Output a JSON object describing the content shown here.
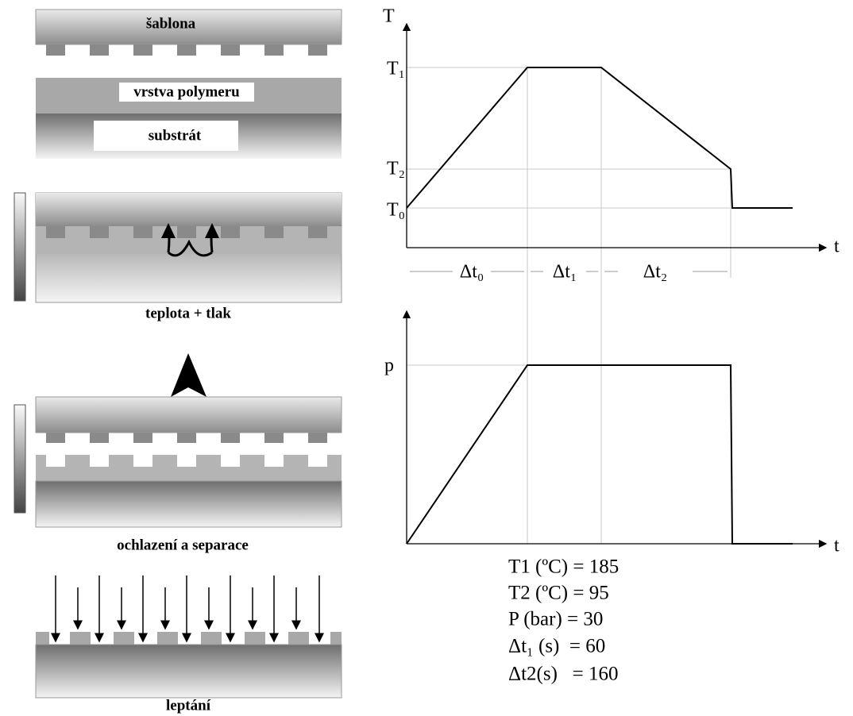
{
  "left": {
    "template": "šablona",
    "polymer_layer": "vrstva polymeru",
    "substrate": "substrát",
    "step_heat_pressure": "teplota + tlak",
    "step_cool_separate": "ochlazení a separace",
    "step_etching": "leptání"
  },
  "temperature_chart": {
    "y_label": "T",
    "x_label": "t",
    "t1": "T₁",
    "t2": "T₂",
    "t0": "T₀",
    "intervals": [
      "Δt₀",
      "Δt₁",
      "Δt₂"
    ]
  },
  "pressure_chart": {
    "y_label": "p",
    "x_label": "t"
  },
  "parameters": [
    "T1 (ºC) = 185",
    "T2 (ºC) = 95",
    "P (bar) = 30",
    "Δt₁ (s)  = 60",
    "Δt2(s)   = 160"
  ]
}
